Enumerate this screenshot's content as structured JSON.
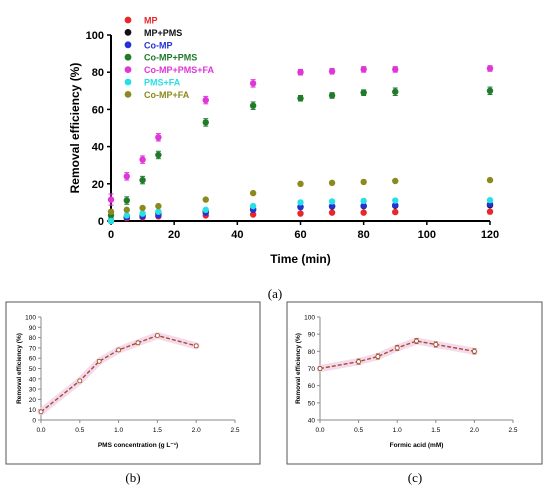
{
  "chart_data": [
    {
      "type": "scatter",
      "panel_label": "(a)",
      "xlabel": "Time (min)",
      "ylabel": "Removal efficiency (%)",
      "xlim": [
        0,
        120
      ],
      "ylim": [
        0,
        100
      ],
      "xticks": [
        "0",
        "20",
        "40",
        "60",
        "80",
        "100",
        "120"
      ],
      "yticks": [
        "0",
        "20",
        "40",
        "60",
        "80",
        "100"
      ],
      "legend_position": "top-left",
      "grid": false,
      "x": [
        0,
        5,
        10,
        15,
        30,
        45,
        60,
        70,
        80,
        90,
        120
      ],
      "series": [
        {
          "name": "MP",
          "color": "#e8262b",
          "values": [
            0,
            1.5,
            2,
            2.5,
            3,
            3.5,
            4,
            4.5,
            4.5,
            4.8,
            5
          ],
          "err": [
            0.3,
            0.3,
            0.3,
            0.3,
            0.4,
            0.4,
            0.4,
            0.4,
            0.4,
            0.4,
            0.4
          ]
        },
        {
          "name": "MP+PMS",
          "color": "#111111",
          "values": [
            0,
            2,
            3,
            4,
            5,
            6.5,
            7.5,
            7.8,
            8,
            8.2,
            8.5
          ],
          "err": [
            0.5,
            0.5,
            0.5,
            0.6,
            0.8,
            0.8,
            0.8,
            0.8,
            0.8,
            0.8,
            0.8
          ]
        },
        {
          "name": "Co-MP",
          "color": "#2431d6",
          "values": [
            0,
            2,
            2.5,
            3,
            4.5,
            6,
            7.5,
            8,
            8.2,
            8.5,
            9
          ],
          "err": [
            0.4,
            0.4,
            0.4,
            0.4,
            0.6,
            0.6,
            0.6,
            0.6,
            0.6,
            0.6,
            0.6
          ]
        },
        {
          "name": "Co-MP+PMS",
          "color": "#1f7a2a",
          "values": [
            3,
            11,
            22,
            35.5,
            53,
            62,
            66,
            67.5,
            69,
            69.5,
            70
          ],
          "err": [
            1.5,
            2,
            2,
            2,
            2,
            2,
            1.5,
            1.5,
            1.5,
            2,
            2
          ]
        },
        {
          "name": "Co-MP+PMS+FA",
          "color": "#e035d8",
          "values": [
            11.5,
            24,
            33,
            45,
            65,
            74,
            80,
            80.5,
            81.5,
            81.5,
            82
          ],
          "err": [
            3,
            2,
            2,
            2,
            2,
            2,
            1.5,
            1.5,
            1.5,
            1.5,
            1.5
          ]
        },
        {
          "name": "PMS+FA",
          "color": "#27e0e6",
          "values": [
            0,
            3,
            4,
            5,
            6,
            8,
            10,
            10.5,
            10.8,
            11,
            11.2
          ],
          "err": [
            0.5,
            0.5,
            0.5,
            0.5,
            0.6,
            0.6,
            0.6,
            0.6,
            0.6,
            0.6,
            0.6
          ]
        },
        {
          "name": "Co-MP+FA",
          "color": "#8c8a1f",
          "values": [
            5,
            6,
            7,
            8,
            11.5,
            15,
            20,
            20.5,
            21,
            21.5,
            22
          ],
          "err": [
            0.5,
            0.5,
            0.5,
            0.5,
            0.5,
            0.5,
            0.5,
            0.5,
            0.5,
            0.5,
            0.5
          ]
        }
      ]
    },
    {
      "type": "line",
      "panel_label": "(b)",
      "xlabel": "PMS concentration (g L⁻¹)",
      "ylabel": "Removal efficiency (%)",
      "xlim": [
        0,
        2.5
      ],
      "ylim": [
        0,
        100
      ],
      "xticks": [
        "0.0",
        "0.5",
        "1.0",
        "1.5",
        "2.0",
        "2.5"
      ],
      "yticks": [
        "0",
        "10",
        "20",
        "30",
        "40",
        "50",
        "60",
        "70",
        "80",
        "90",
        "100"
      ],
      "grid": false,
      "line_color": "#a0522d",
      "x": [
        0,
        0.5,
        0.75,
        1.0,
        1.25,
        1.5,
        2.0
      ],
      "values": [
        8,
        38,
        57,
        68,
        75,
        82,
        72
      ],
      "err": [
        1,
        1.5,
        1.5,
        1.5,
        1.5,
        1.5,
        1.5
      ]
    },
    {
      "type": "line",
      "panel_label": "(c)",
      "xlabel": "Formic acid (mM)",
      "ylabel": "Removal efficiency (%)",
      "xlim": [
        0,
        2.5
      ],
      "ylim": [
        40,
        100
      ],
      "xticks": [
        "0.0",
        "0.5",
        "1.0",
        "1.5",
        "2.0",
        "2.5"
      ],
      "yticks": [
        "40",
        "50",
        "60",
        "70",
        "80",
        "90",
        "100"
      ],
      "grid": false,
      "line_color": "#a0522d",
      "x": [
        0,
        0.5,
        0.75,
        1.0,
        1.25,
        1.5,
        2.0
      ],
      "values": [
        70,
        74,
        77,
        82,
        86,
        84,
        80
      ],
      "err": [
        1,
        1.5,
        1.5,
        1.5,
        1.5,
        1.5,
        1.5
      ]
    }
  ]
}
